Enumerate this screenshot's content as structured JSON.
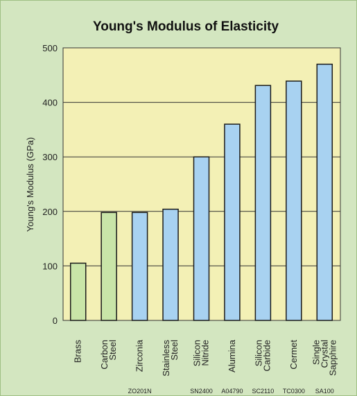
{
  "chart_data": {
    "type": "bar",
    "title": "Young's Modulus of Elasticity",
    "ylabel": "Young's Modulus (GPa)",
    "xlabel": "",
    "ylim": [
      0,
      500
    ],
    "yticks": [
      0,
      100,
      200,
      300,
      400,
      500
    ],
    "grid": true,
    "categories": [
      {
        "label": [
          "Brass"
        ],
        "code": "",
        "value": 105,
        "color": "#c9e5a8"
      },
      {
        "label": [
          "Carbon",
          "Steel"
        ],
        "code": "",
        "value": 198,
        "color": "#c9e5a8"
      },
      {
        "label": [
          "Zirconia"
        ],
        "code": "ZO201N",
        "value": 198,
        "color": "#a8d2f1"
      },
      {
        "label": [
          "Stainless",
          "Steel"
        ],
        "code": "",
        "value": 204,
        "color": "#a8d2f1"
      },
      {
        "label": [
          "Silicon",
          "Nitride"
        ],
        "code": "SN2400",
        "value": 300,
        "color": "#a8d2f1"
      },
      {
        "label": [
          "Alumina"
        ],
        "code": "A04790",
        "value": 360,
        "color": "#a8d2f1"
      },
      {
        "label": [
          "Silicon",
          "Carbide"
        ],
        "code": "SC2110",
        "value": 431,
        "color": "#a8d2f1"
      },
      {
        "label": [
          "Cermet"
        ],
        "code": "TC0300",
        "value": 439,
        "color": "#a8d2f1"
      },
      {
        "label": [
          "Single",
          "Crystal",
          "Sapphire"
        ],
        "code": "SA100",
        "value": 470,
        "color": "#a8d2f1"
      }
    ],
    "colors": {
      "background": "#d3e6c0",
      "plot_area": "#f3f0b5",
      "bar_metal": "#c9e5a8",
      "bar_ceramic": "#a8d2f1",
      "bar_outline": "#1a1a1a"
    }
  }
}
